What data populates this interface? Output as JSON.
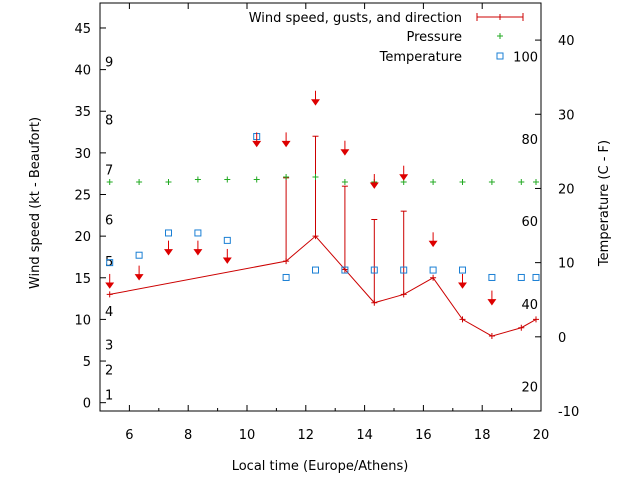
{
  "chart_data": {
    "type": "line",
    "xlabel": "Local time (Europe/Athens)",
    "ylabel": "Wind speed (kt - Beaufort)",
    "y2label": "Temperature (C - F)",
    "xlim": [
      5.0,
      20.0
    ],
    "ylim": [
      -1,
      48
    ],
    "y2lim": [
      -10,
      45
    ],
    "grid": false,
    "legend_position": "top-right",
    "x_ticks": [
      "6",
      "8",
      "10",
      "12",
      "14",
      "16",
      "18",
      "20"
    ],
    "y_ticks": [
      "0",
      "5",
      "10",
      "15",
      "20",
      "25",
      "30",
      "35",
      "40",
      "45"
    ],
    "y2_ticks": [
      "-10",
      "0",
      "10",
      "20",
      "30",
      "40"
    ],
    "beaufort_labels": [
      {
        "label": "1",
        "kt": 1
      },
      {
        "label": "2",
        "kt": 4
      },
      {
        "label": "3",
        "kt": 7
      },
      {
        "label": "4",
        "kt": 11
      },
      {
        "label": "5",
        "kt": 17
      },
      {
        "label": "6",
        "kt": 22
      },
      {
        "label": "7",
        "kt": 28
      },
      {
        "label": "8",
        "kt": 34
      },
      {
        "label": "9",
        "kt": 41
      }
    ],
    "fahrenheit_labels": [
      {
        "label": "20",
        "c": -6.7
      },
      {
        "label": "40",
        "c": 4.4
      },
      {
        "label": "60",
        "c": 15.6
      },
      {
        "label": "80",
        "c": 26.7
      },
      {
        "label": "100",
        "c": 37.8
      }
    ],
    "legend": {
      "wind": "Wind speed, gusts, and direction",
      "pressure": "Pressure",
      "temperature": "Temperature"
    },
    "colors": {
      "wind": "#cc0000",
      "pressure": "#22aa22",
      "temperature": "#1a7fd4",
      "arrow": "#dd0000"
    },
    "series": [
      {
        "name": "Wind speed, gusts, and direction",
        "x": [
          5.33,
          11.33,
          12.33,
          13.33,
          14.33,
          15.33,
          16.33,
          17.33,
          18.33,
          19.33,
          19.83
        ],
        "values": [
          13,
          17,
          20,
          16,
          12,
          13,
          15,
          10,
          8,
          9,
          10
        ],
        "gusts": [
          null,
          27,
          32,
          26,
          22,
          23,
          null,
          null,
          null,
          null,
          null
        ]
      },
      {
        "name": "Pressure",
        "x": [
          5.33,
          6.33,
          7.33,
          8.33,
          9.33,
          10.33,
          11.33,
          12.33,
          13.33,
          14.33,
          15.33,
          16.33,
          17.33,
          18.33,
          19.33,
          19.83
        ],
        "values": [
          26.5,
          26.5,
          26.5,
          26.8,
          26.8,
          26.8,
          27.1,
          27.1,
          26.5,
          26.5,
          26.5,
          26.5,
          26.5,
          26.5,
          26.5,
          26.5
        ]
      },
      {
        "name": "Temperature",
        "x": [
          5.33,
          6.33,
          7.33,
          8.33,
          9.33,
          10.33,
          11.33,
          12.33,
          13.33,
          14.33,
          15.33,
          16.33,
          17.33,
          18.33,
          19.33,
          19.83
        ],
        "values": [
          10,
          11,
          14,
          14,
          13,
          27,
          8,
          9,
          9,
          9,
          9,
          9,
          9,
          8,
          8,
          8
        ]
      }
    ],
    "wind_direction_arrows": [
      {
        "x": 5.33,
        "y": 14.5,
        "dir": "S"
      },
      {
        "x": 6.33,
        "y": 15.5,
        "dir": "S"
      },
      {
        "x": 7.33,
        "y": 18.5,
        "dir": "S"
      },
      {
        "x": 8.33,
        "y": 18.5,
        "dir": "S"
      },
      {
        "x": 9.33,
        "y": 17.5,
        "dir": "S"
      },
      {
        "x": 10.33,
        "y": 31.5,
        "dir": "S"
      },
      {
        "x": 11.33,
        "y": 31.5,
        "dir": "S"
      },
      {
        "x": 12.33,
        "y": 36.5,
        "dir": "S"
      },
      {
        "x": 13.33,
        "y": 30.5,
        "dir": "S"
      },
      {
        "x": 14.33,
        "y": 26.5,
        "dir": "S"
      },
      {
        "x": 15.33,
        "y": 27.5,
        "dir": "S"
      },
      {
        "x": 16.33,
        "y": 19.5,
        "dir": "S"
      },
      {
        "x": 17.33,
        "y": 14.5,
        "dir": "S"
      },
      {
        "x": 18.33,
        "y": 12.5,
        "dir": "S"
      }
    ]
  }
}
